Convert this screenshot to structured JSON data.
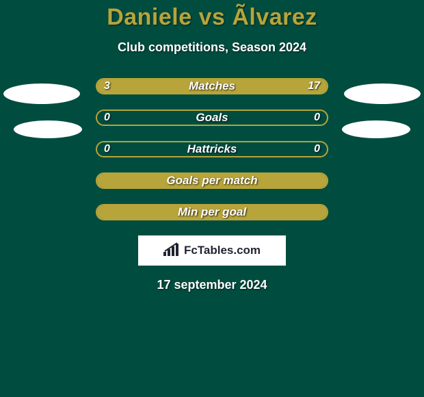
{
  "title": "Daniele vs Ãlvarez",
  "subtitle": "Club competitions, Season 2024",
  "bars": [
    {
      "label": "Matches",
      "left_val": "3",
      "right_val": "17",
      "left_pct": 15,
      "right_pct": 85
    },
    {
      "label": "Goals",
      "left_val": "0",
      "right_val": "0",
      "left_pct": 0,
      "right_pct": 0
    },
    {
      "label": "Hattricks",
      "left_val": "0",
      "right_val": "0",
      "left_pct": 0,
      "right_pct": 0
    },
    {
      "label": "Goals per match",
      "left_val": "",
      "right_val": "",
      "left_pct": 0,
      "right_pct": 100
    },
    {
      "label": "Min per goal",
      "left_val": "",
      "right_val": "",
      "left_pct": 0,
      "right_pct": 100
    }
  ],
  "colors": {
    "background": "#004d40",
    "accent": "#b7a43a",
    "text": "#ffffff",
    "badge_bg": "#ffffff",
    "badge_text": "#1e2430"
  },
  "site_name": "FcTables.com",
  "date": "17 september 2024"
}
